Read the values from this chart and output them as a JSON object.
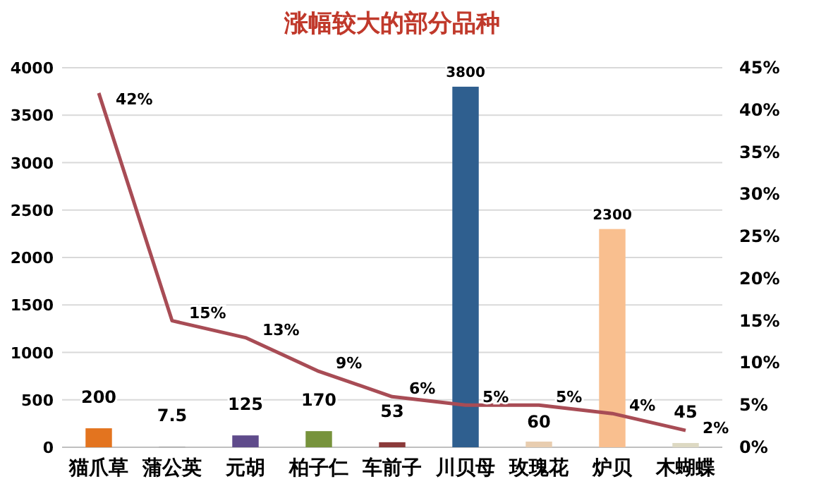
{
  "chart_data": {
    "type": "bar",
    "title": "涨幅较大的部分品种",
    "categories": [
      "猫爪草",
      "蒲公英",
      "元胡",
      "柏子仁",
      "车前子",
      "川贝母",
      "玫瑰花",
      "炉贝",
      "木蝴蝶"
    ],
    "series": [
      {
        "colors": [
          "#e3741f",
          "#a5a5a5",
          "#5f4b8b",
          "#77933c",
          "#8b3a3a",
          "#2f5f8f",
          "#e8cdb0",
          "#f9bf8f",
          "#ddd9c3"
        ],
        "values": [
          200,
          7.5,
          125,
          170,
          53,
          3800,
          60,
          2300,
          45
        ],
        "value_labels": [
          "200",
          "7.5",
          "125",
          "170",
          "53",
          "3800",
          "60",
          "2300",
          "45"
        ]
      },
      {
        "type": "line",
        "axis": "y2",
        "color": "#a84c55",
        "values": [
          42,
          15,
          13,
          9,
          6,
          5,
          5,
          4,
          2
        ],
        "value_labels": [
          "42%",
          "15%",
          "13%",
          "9%",
          "6%",
          "5%",
          "5%",
          "4%",
          "2%"
        ]
      }
    ],
    "ylim": [
      0,
      4000
    ],
    "yticks": [
      0,
      500,
      1000,
      1500,
      2000,
      2500,
      3000,
      3500,
      4000
    ],
    "y2lim": [
      0,
      45
    ],
    "y2ticks": [
      {
        "value": 0,
        "label": "0%"
      },
      {
        "value": 5,
        "label": "5%"
      },
      {
        "value": 10,
        "label": "10%"
      },
      {
        "value": 15,
        "label": "15%"
      },
      {
        "value": 20,
        "label": "20%"
      },
      {
        "value": 25,
        "label": "25%"
      },
      {
        "value": 30,
        "label": "30%"
      },
      {
        "value": 35,
        "label": "35%"
      },
      {
        "value": 40,
        "label": "40%"
      },
      {
        "value": 45,
        "label": "45%"
      }
    ],
    "grid": "y"
  }
}
